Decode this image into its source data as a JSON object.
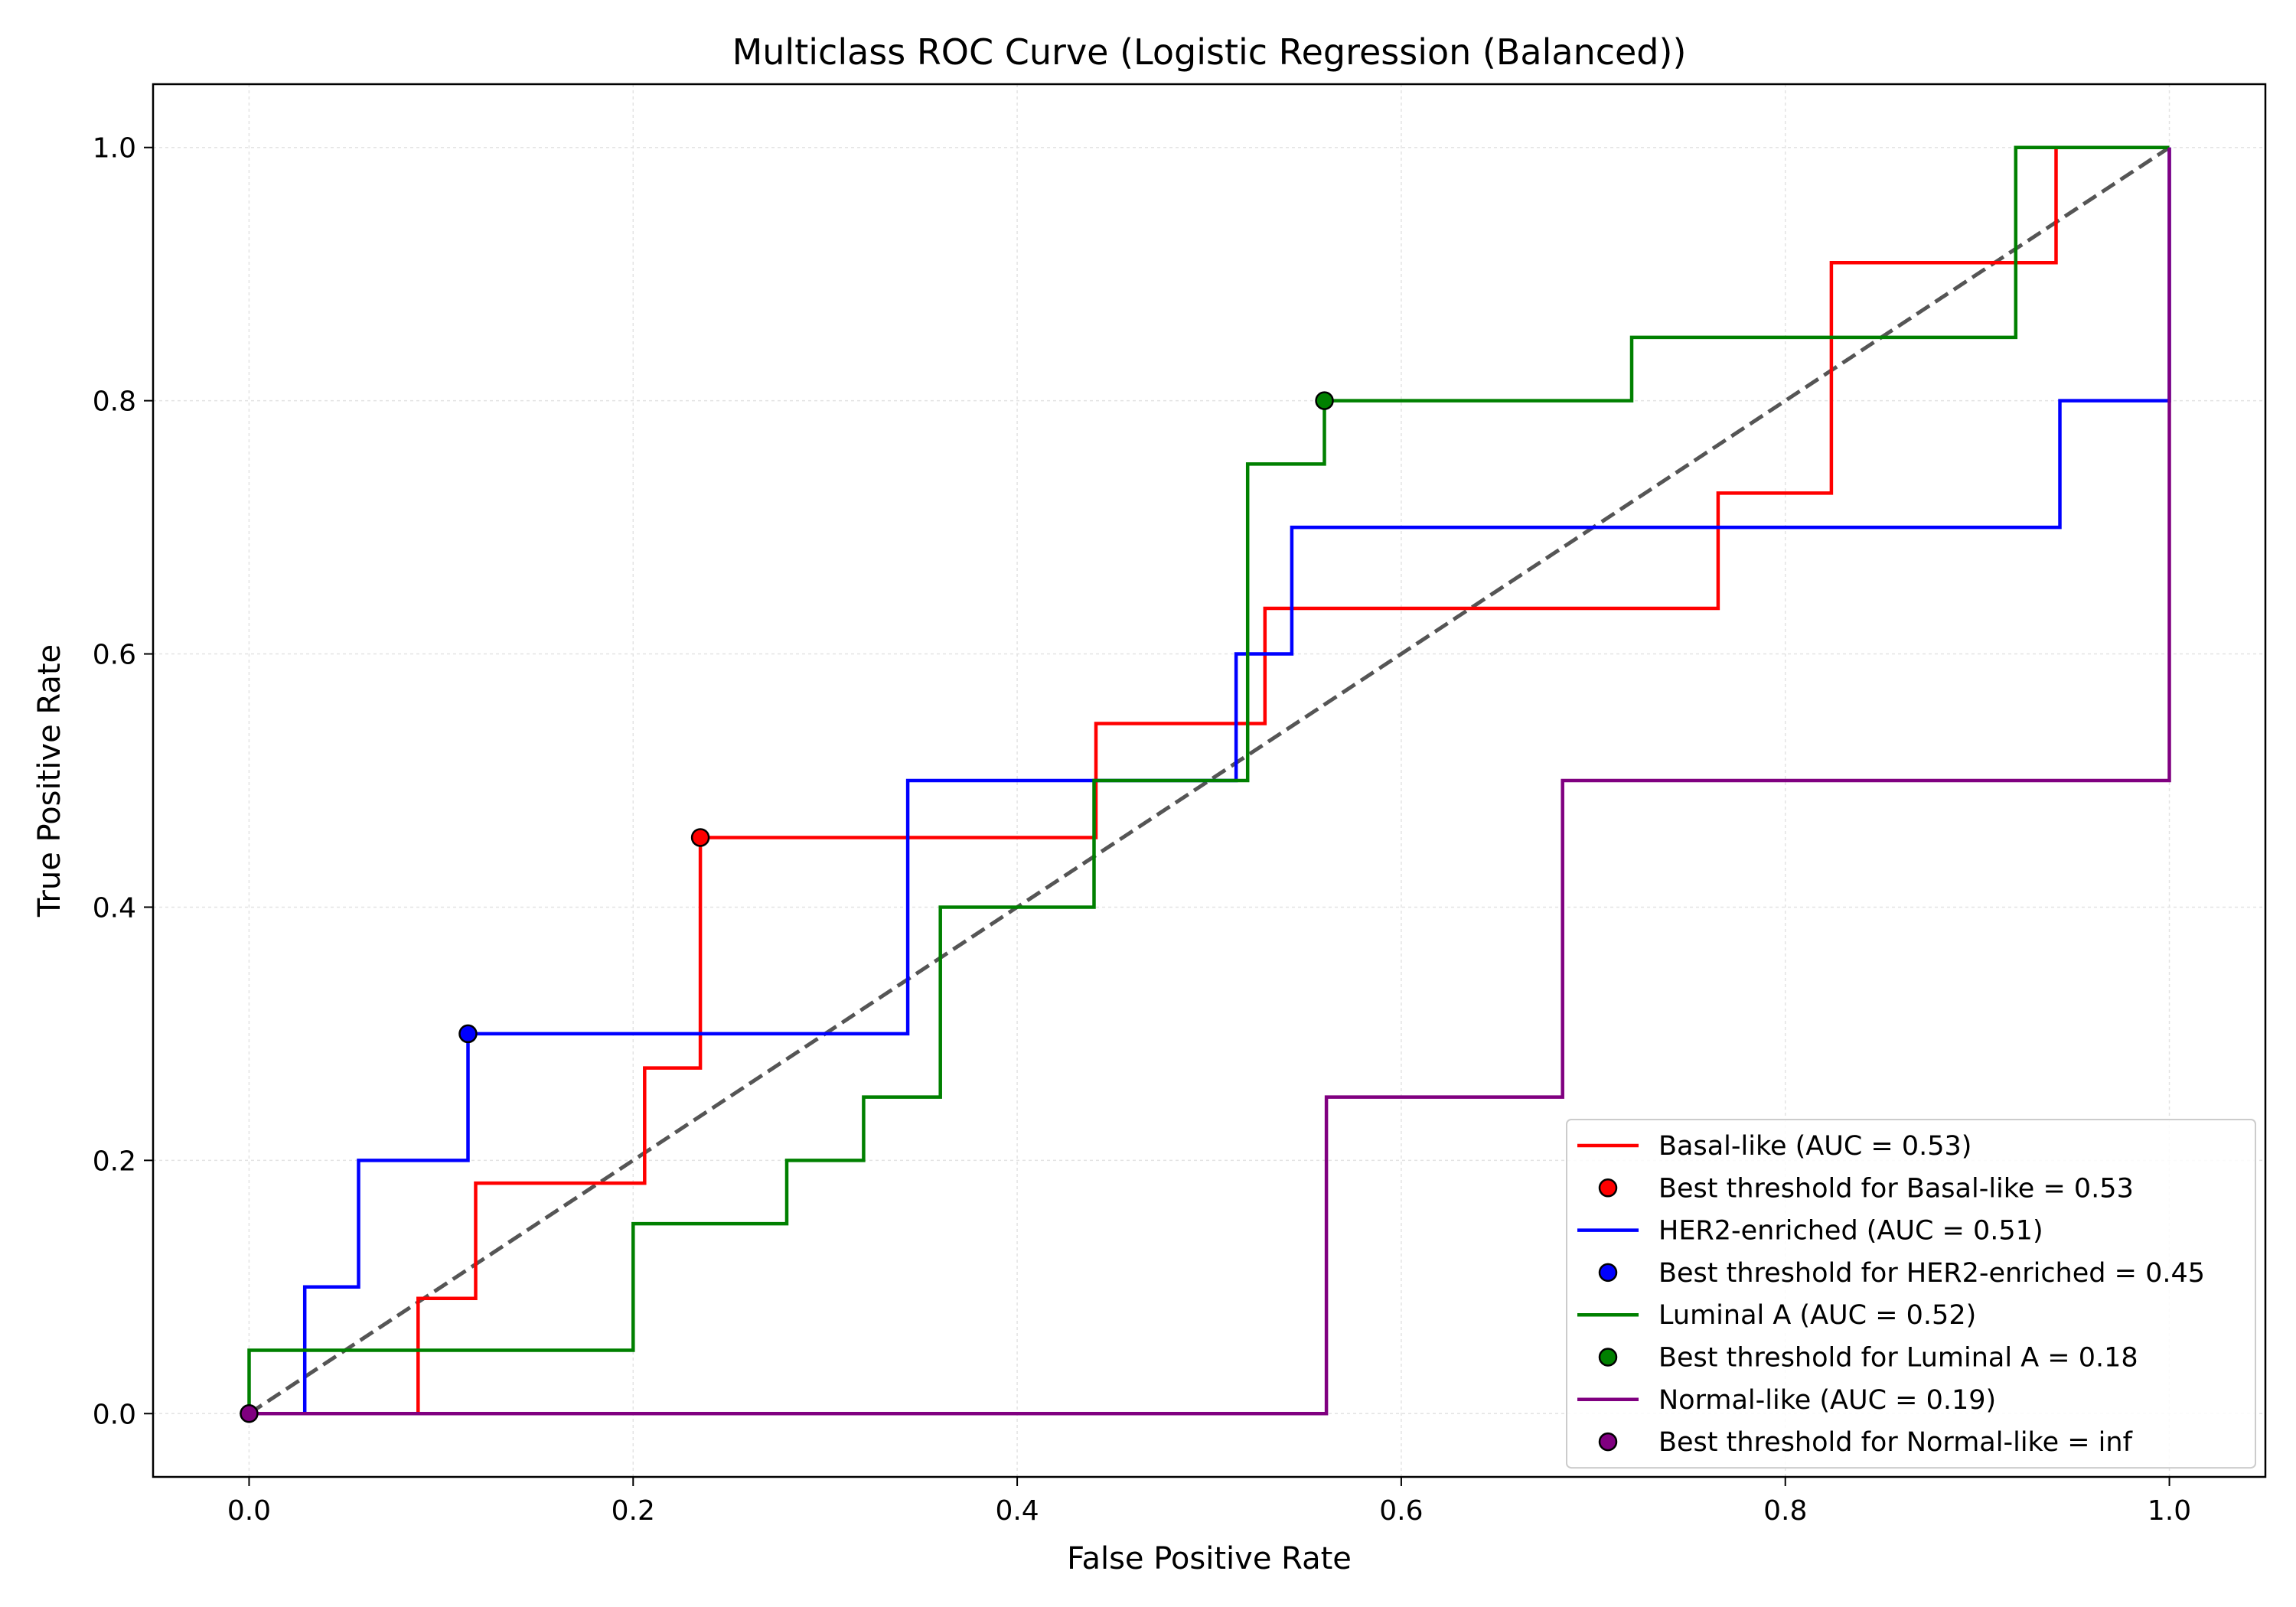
{
  "chart_data": {
    "type": "line",
    "title": "Multiclass ROC Curve (Logistic Regression (Balanced))",
    "xlabel": "False Positive Rate",
    "ylabel": "True Positive Rate",
    "xlim": [
      -0.05,
      1.05
    ],
    "ylim": [
      -0.05,
      1.05
    ],
    "xticks": [
      0.0,
      0.2,
      0.4,
      0.6,
      0.8,
      1.0
    ],
    "yticks": [
      0.0,
      0.2,
      0.4,
      0.6,
      0.8,
      1.0
    ],
    "xtick_labels": [
      "0.0",
      "0.2",
      "0.4",
      "0.6",
      "0.8",
      "1.0"
    ],
    "ytick_labels": [
      "0.0",
      "0.2",
      "0.4",
      "0.6",
      "0.8",
      "1.0"
    ],
    "grid": true,
    "legend_position": "lower-right",
    "reference_line": {
      "x": [
        0,
        1
      ],
      "y": [
        0,
        1
      ],
      "color": "#555555",
      "style": "dashed"
    },
    "series": [
      {
        "name": "Basal-like (AUC = 0.53)",
        "color": "#ff0000",
        "x": [
          0,
          0.088,
          0.088,
          0.118,
          0.118,
          0.206,
          0.206,
          0.235,
          0.235,
          0.441,
          0.441,
          0.529,
          0.529,
          0.765,
          0.765,
          0.824,
          0.824,
          0.941,
          0.941,
          1.0
        ],
        "y": [
          0,
          0,
          0.091,
          0.091,
          0.182,
          0.182,
          0.273,
          0.273,
          0.455,
          0.455,
          0.545,
          0.545,
          0.636,
          0.636,
          0.727,
          0.727,
          0.909,
          0.909,
          1.0,
          1.0
        ],
        "best_threshold": {
          "label": "Best threshold for Basal-like = 0.53",
          "x": 0.235,
          "y": 0.455
        }
      },
      {
        "name": "HER2-enriched (AUC = 0.51)",
        "color": "#0000ff",
        "x": [
          0,
          0.029,
          0.029,
          0.057,
          0.057,
          0.114,
          0.114,
          0.343,
          0.343,
          0.514,
          0.514,
          0.543,
          0.543,
          0.943,
          0.943,
          1.0,
          1.0
        ],
        "y": [
          0,
          0,
          0.1,
          0.1,
          0.2,
          0.2,
          0.3,
          0.3,
          0.5,
          0.5,
          0.6,
          0.6,
          0.7,
          0.7,
          0.8,
          0.8,
          1.0
        ],
        "best_threshold": {
          "label": "Best threshold for HER2-enriched = 0.45",
          "x": 0.114,
          "y": 0.3
        }
      },
      {
        "name": "Luminal A (AUC = 0.52)",
        "color": "#008000",
        "x": [
          0,
          0,
          0.2,
          0.2,
          0.28,
          0.28,
          0.32,
          0.32,
          0.36,
          0.36,
          0.44,
          0.44,
          0.52,
          0.52,
          0.56,
          0.56,
          0.72,
          0.72,
          0.92,
          0.92,
          1.0
        ],
        "y": [
          0,
          0.05,
          0.05,
          0.15,
          0.15,
          0.2,
          0.2,
          0.25,
          0.25,
          0.4,
          0.4,
          0.5,
          0.5,
          0.75,
          0.75,
          0.8,
          0.8,
          0.85,
          0.85,
          1.0,
          1.0
        ],
        "best_threshold": {
          "label": "Best threshold for Luminal A = 0.18",
          "x": 0.56,
          "y": 0.8
        }
      },
      {
        "name": "Normal-like (AUC = 0.19)",
        "color": "#800080",
        "x": [
          0,
          0.561,
          0.561,
          0.684,
          0.684,
          1.0,
          1.0
        ],
        "y": [
          0,
          0,
          0.25,
          0.25,
          0.5,
          0.5,
          1.0
        ],
        "best_threshold": {
          "label": "Best threshold for Normal-like = inf",
          "x": 0.0,
          "y": 0.0
        }
      }
    ]
  }
}
